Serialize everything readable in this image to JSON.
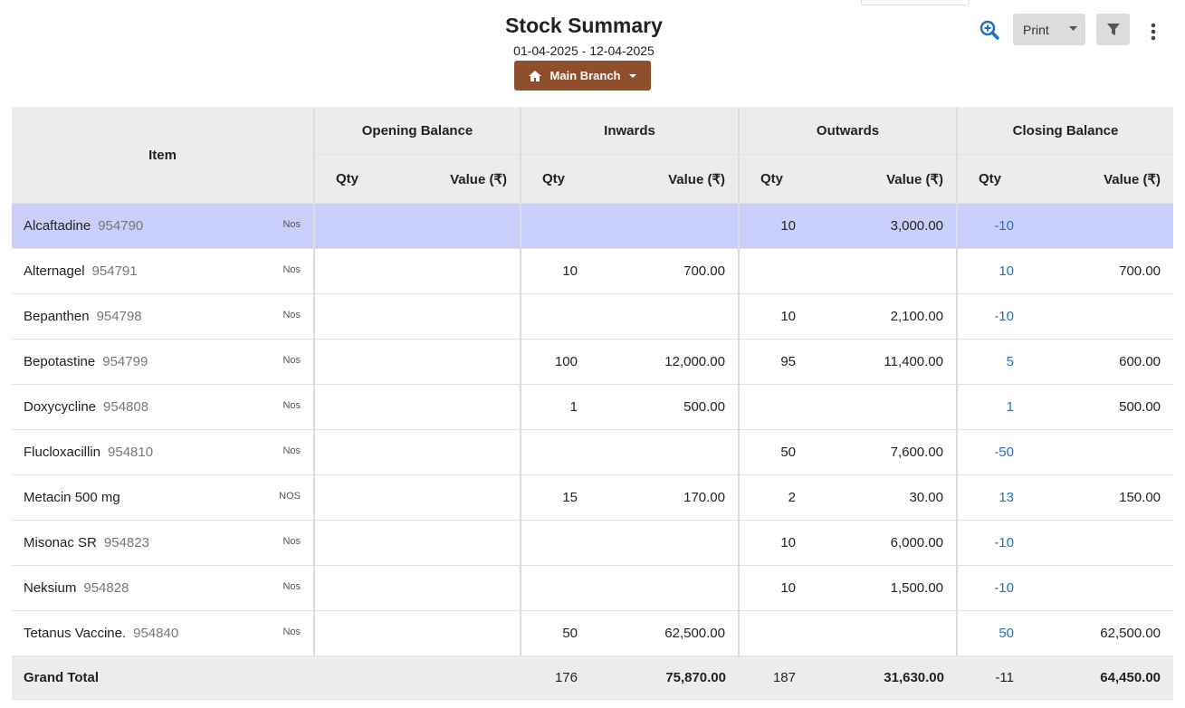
{
  "header": {
    "title": "Stock Summary",
    "date_range": "01-04-2025 - 12-04-2025",
    "branch": "Main Branch"
  },
  "toolbar": {
    "print": "Print"
  },
  "table": {
    "item_header": "Item",
    "groups": [
      {
        "title": "Opening Balance",
        "sub": [
          "Qty",
          "Value (₹)"
        ]
      },
      {
        "title": "Inwards",
        "sub": [
          "Qty",
          "Value (₹)"
        ]
      },
      {
        "title": "Outwards",
        "sub": [
          "Qty",
          "Value (₹)"
        ]
      },
      {
        "title": "Closing Balance",
        "sub": [
          "Qty",
          "Value (₹)"
        ]
      }
    ],
    "rows": [
      {
        "name": "Alcaftadine",
        "code": "954790",
        "unit": "Nos",
        "cells": [
          null,
          null,
          null,
          null,
          "10",
          "3,000.00",
          "-10",
          null
        ]
      },
      {
        "name": "Alternagel",
        "code": "954791",
        "unit": "Nos",
        "cells": [
          null,
          null,
          "10",
          "700.00",
          null,
          null,
          "10",
          "700.00"
        ]
      },
      {
        "name": "Bepanthen",
        "code": "954798",
        "unit": "Nos",
        "cells": [
          null,
          null,
          null,
          null,
          "10",
          "2,100.00",
          "-10",
          null
        ]
      },
      {
        "name": "Bepotastine",
        "code": "954799",
        "unit": "Nos",
        "cells": [
          null,
          null,
          "100",
          "12,000.00",
          "95",
          "11,400.00",
          "5",
          "600.00"
        ]
      },
      {
        "name": "Doxycycline",
        "code": "954808",
        "unit": "Nos",
        "cells": [
          null,
          null,
          "1",
          "500.00",
          null,
          null,
          "1",
          "500.00"
        ]
      },
      {
        "name": "Flucloxacillin",
        "code": "954810",
        "unit": "Nos",
        "cells": [
          null,
          null,
          null,
          null,
          "50",
          "7,600.00",
          "-50",
          null
        ]
      },
      {
        "name": "Metacin 500 mg",
        "code": null,
        "unit": "NOS",
        "cells": [
          null,
          null,
          "15",
          "170.00",
          "2",
          "30.00",
          "13",
          "150.00"
        ]
      },
      {
        "name": "Misonac SR",
        "code": "954823",
        "unit": "Nos",
        "cells": [
          null,
          null,
          null,
          null,
          "10",
          "6,000.00",
          "-10",
          null
        ]
      },
      {
        "name": "Neksium",
        "code": "954828",
        "unit": "Nos",
        "cells": [
          null,
          null,
          null,
          null,
          "10",
          "1,500.00",
          "-10",
          null
        ]
      },
      {
        "name": "Tetanus Vaccine.",
        "code": "954840",
        "unit": "Nos",
        "cells": [
          null,
          null,
          "50",
          "62,500.00",
          null,
          null,
          "50",
          "62,500.00"
        ]
      }
    ],
    "total": {
      "label": "Grand Total",
      "cells": [
        null,
        null,
        "176",
        "75,870.00",
        "187",
        "31,630.00",
        "-11",
        "64,450.00"
      ]
    }
  }
}
